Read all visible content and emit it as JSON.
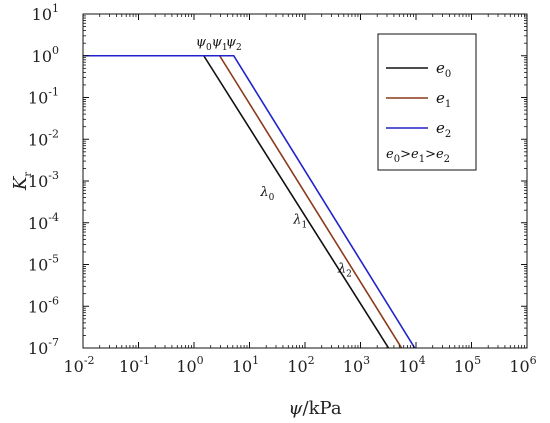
{
  "chart_data": {
    "type": "line",
    "title": "",
    "xlabel": {
      "symbol": "ψ",
      "unit": "/kPa"
    },
    "ylabel": {
      "symbol": "K",
      "subscript": "r"
    },
    "x_scale": "log",
    "y_scale": "log",
    "xlim": [
      0.01,
      1000000
    ],
    "ylim": [
      1e-07,
      10
    ],
    "x_ticks": [
      {
        "value": 0.01,
        "base": "10",
        "exp": "-2"
      },
      {
        "value": 0.1,
        "base": "10",
        "exp": "-1"
      },
      {
        "value": 1,
        "base": "10",
        "exp": "0"
      },
      {
        "value": 10,
        "base": "10",
        "exp": "1"
      },
      {
        "value": 100,
        "base": "10",
        "exp": "2"
      },
      {
        "value": 1000,
        "base": "10",
        "exp": "3"
      },
      {
        "value": 10000,
        "base": "10",
        "exp": "4"
      },
      {
        "value": 100000,
        "base": "10",
        "exp": "5"
      },
      {
        "value": 1000000,
        "base": "10",
        "exp": "6"
      }
    ],
    "y_ticks": [
      {
        "value": 1e-07,
        "base": "10",
        "exp": "-7"
      },
      {
        "value": 1e-06,
        "base": "10",
        "exp": "-6"
      },
      {
        "value": 1e-05,
        "base": "10",
        "exp": "-5"
      },
      {
        "value": 0.0001,
        "base": "10",
        "exp": "-4"
      },
      {
        "value": 0.001,
        "base": "10",
        "exp": "-3"
      },
      {
        "value": 0.01,
        "base": "10",
        "exp": "-2"
      },
      {
        "value": 0.1,
        "base": "10",
        "exp": "-1"
      },
      {
        "value": 1,
        "base": "10",
        "exp": "0"
      },
      {
        "value": 10,
        "base": "10",
        "exp": "1"
      }
    ],
    "grid": false,
    "legend_position": "top-right",
    "series": [
      {
        "name": "e",
        "sub": "0",
        "color": "#111111",
        "x": [
          0.01,
          1.5,
          3200
        ],
        "y": [
          1,
          1,
          1e-07
        ]
      },
      {
        "name": "e",
        "sub": "1",
        "color": "#8B3A1A",
        "x": [
          0.01,
          2.9,
          5500
        ],
        "y": [
          1,
          1,
          1e-07
        ]
      },
      {
        "name": "e",
        "sub": "2",
        "color": "#2222CC",
        "x": [
          0.01,
          5.2,
          9500
        ],
        "y": [
          1,
          1,
          1e-07
        ]
      }
    ],
    "legend_note": {
      "parts": [
        {
          "t": "e",
          "s": "0"
        },
        {
          "t": ">",
          "s": ""
        },
        {
          "t": "e",
          "s": "1"
        },
        {
          "t": ">",
          "s": ""
        },
        {
          "t": "e",
          "s": "2"
        }
      ]
    },
    "annotations": [
      {
        "symbol": "ψ",
        "sub": "0",
        "x": 1.5,
        "y": 1
      },
      {
        "symbol": "ψ",
        "sub": "1",
        "x": 2.9,
        "y": 1
      },
      {
        "symbol": "ψ",
        "sub": "2",
        "x": 5.2,
        "y": 1
      },
      {
        "symbol": "λ",
        "sub": "0",
        "x": 28,
        "y": 0.00055
      },
      {
        "symbol": "λ",
        "sub": "1",
        "x": 110,
        "y": 0.00012
      },
      {
        "symbol": "λ",
        "sub": "2",
        "x": 700,
        "y": 8e-06
      }
    ]
  }
}
